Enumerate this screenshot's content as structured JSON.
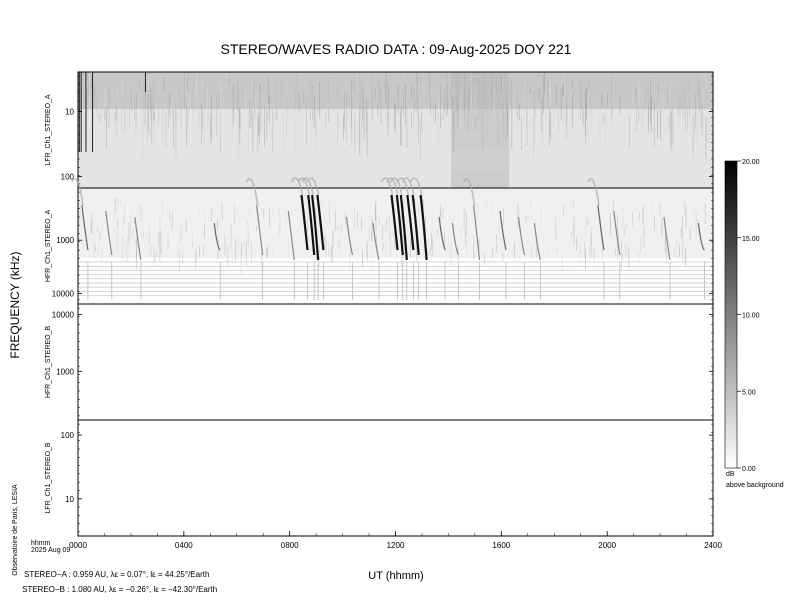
{
  "title": "STEREO/WAVES  RADIO  DATA : 09-Aug-2025  DOY 221",
  "y_axis_title": "FREQUENCY (kHz)",
  "x_axis_title": "UT (hhmm)",
  "corner_label_line1": "hhmm",
  "corner_label_line2": "2025 Aug 09",
  "credit": "Observatoire de Paris, LESIA",
  "stereo_a_info": "STEREO−A : 0.959 AU, λε = 0.07°, lε = 44.25°/Earth",
  "stereo_b_info": "STEREO−B : 1.080 AU, λε = −0.26°, lε = −42.30°/Earth",
  "colorbar": {
    "unit_line1": "dB",
    "unit_line2": "above background",
    "ticks": [
      "0.00",
      "5.00",
      "10.00",
      "15.00",
      "20.00"
    ],
    "min": 0,
    "max": 20
  },
  "chart_data": {
    "type": "heatmap",
    "title": "STEREO/WAVES  RADIO  DATA : 09-Aug-2025  DOY 221",
    "xlabel": "UT (hhmm)",
    "ylabel": "FREQUENCY (kHz)",
    "x_ticks": [
      "0000",
      "0400",
      "0800",
      "1200",
      "1600",
      "2000",
      "2400"
    ],
    "xlim_hours": [
      0,
      24
    ],
    "panels": [
      {
        "name": "LFR_Ch1_STEREO_A",
        "y_ticks": [
          "10",
          "100"
        ],
        "yscale": "log",
        "ylim_khz": [
          2.5,
          160
        ],
        "has_data": true
      },
      {
        "name": "HFR_Ch1_STEREO_A",
        "y_ticks": [
          "1000",
          "10000"
        ],
        "yscale": "log",
        "ylim_khz": [
          160,
          16000
        ],
        "has_data": true
      },
      {
        "name": "HFR_Ch1_STEREO_B",
        "y_ticks": [
          "10000",
          "1000"
        ],
        "yscale": "log",
        "ylim_khz": [
          16000,
          160
        ],
        "has_data": false
      },
      {
        "name": "LFR_Ch1_STEREO_B",
        "y_ticks": [
          "100",
          "10"
        ],
        "yscale": "log",
        "ylim_khz": [
          160,
          2.5
        ],
        "has_data": false
      }
    ],
    "bursts_hours": [
      0.3,
      1.2,
      2.3,
      5.3,
      6.9,
      8.1,
      8.6,
      8.85,
      9.0,
      9.2,
      10.3,
      11.3,
      12.0,
      12.2,
      12.35,
      12.6,
      12.8,
      13.1,
      13.8,
      14.3,
      15.1,
      16.1,
      16.8,
      17.4,
      19.8,
      20.4,
      22.3,
      23.6
    ],
    "colorbar_range_db": [
      0,
      20
    ]
  }
}
